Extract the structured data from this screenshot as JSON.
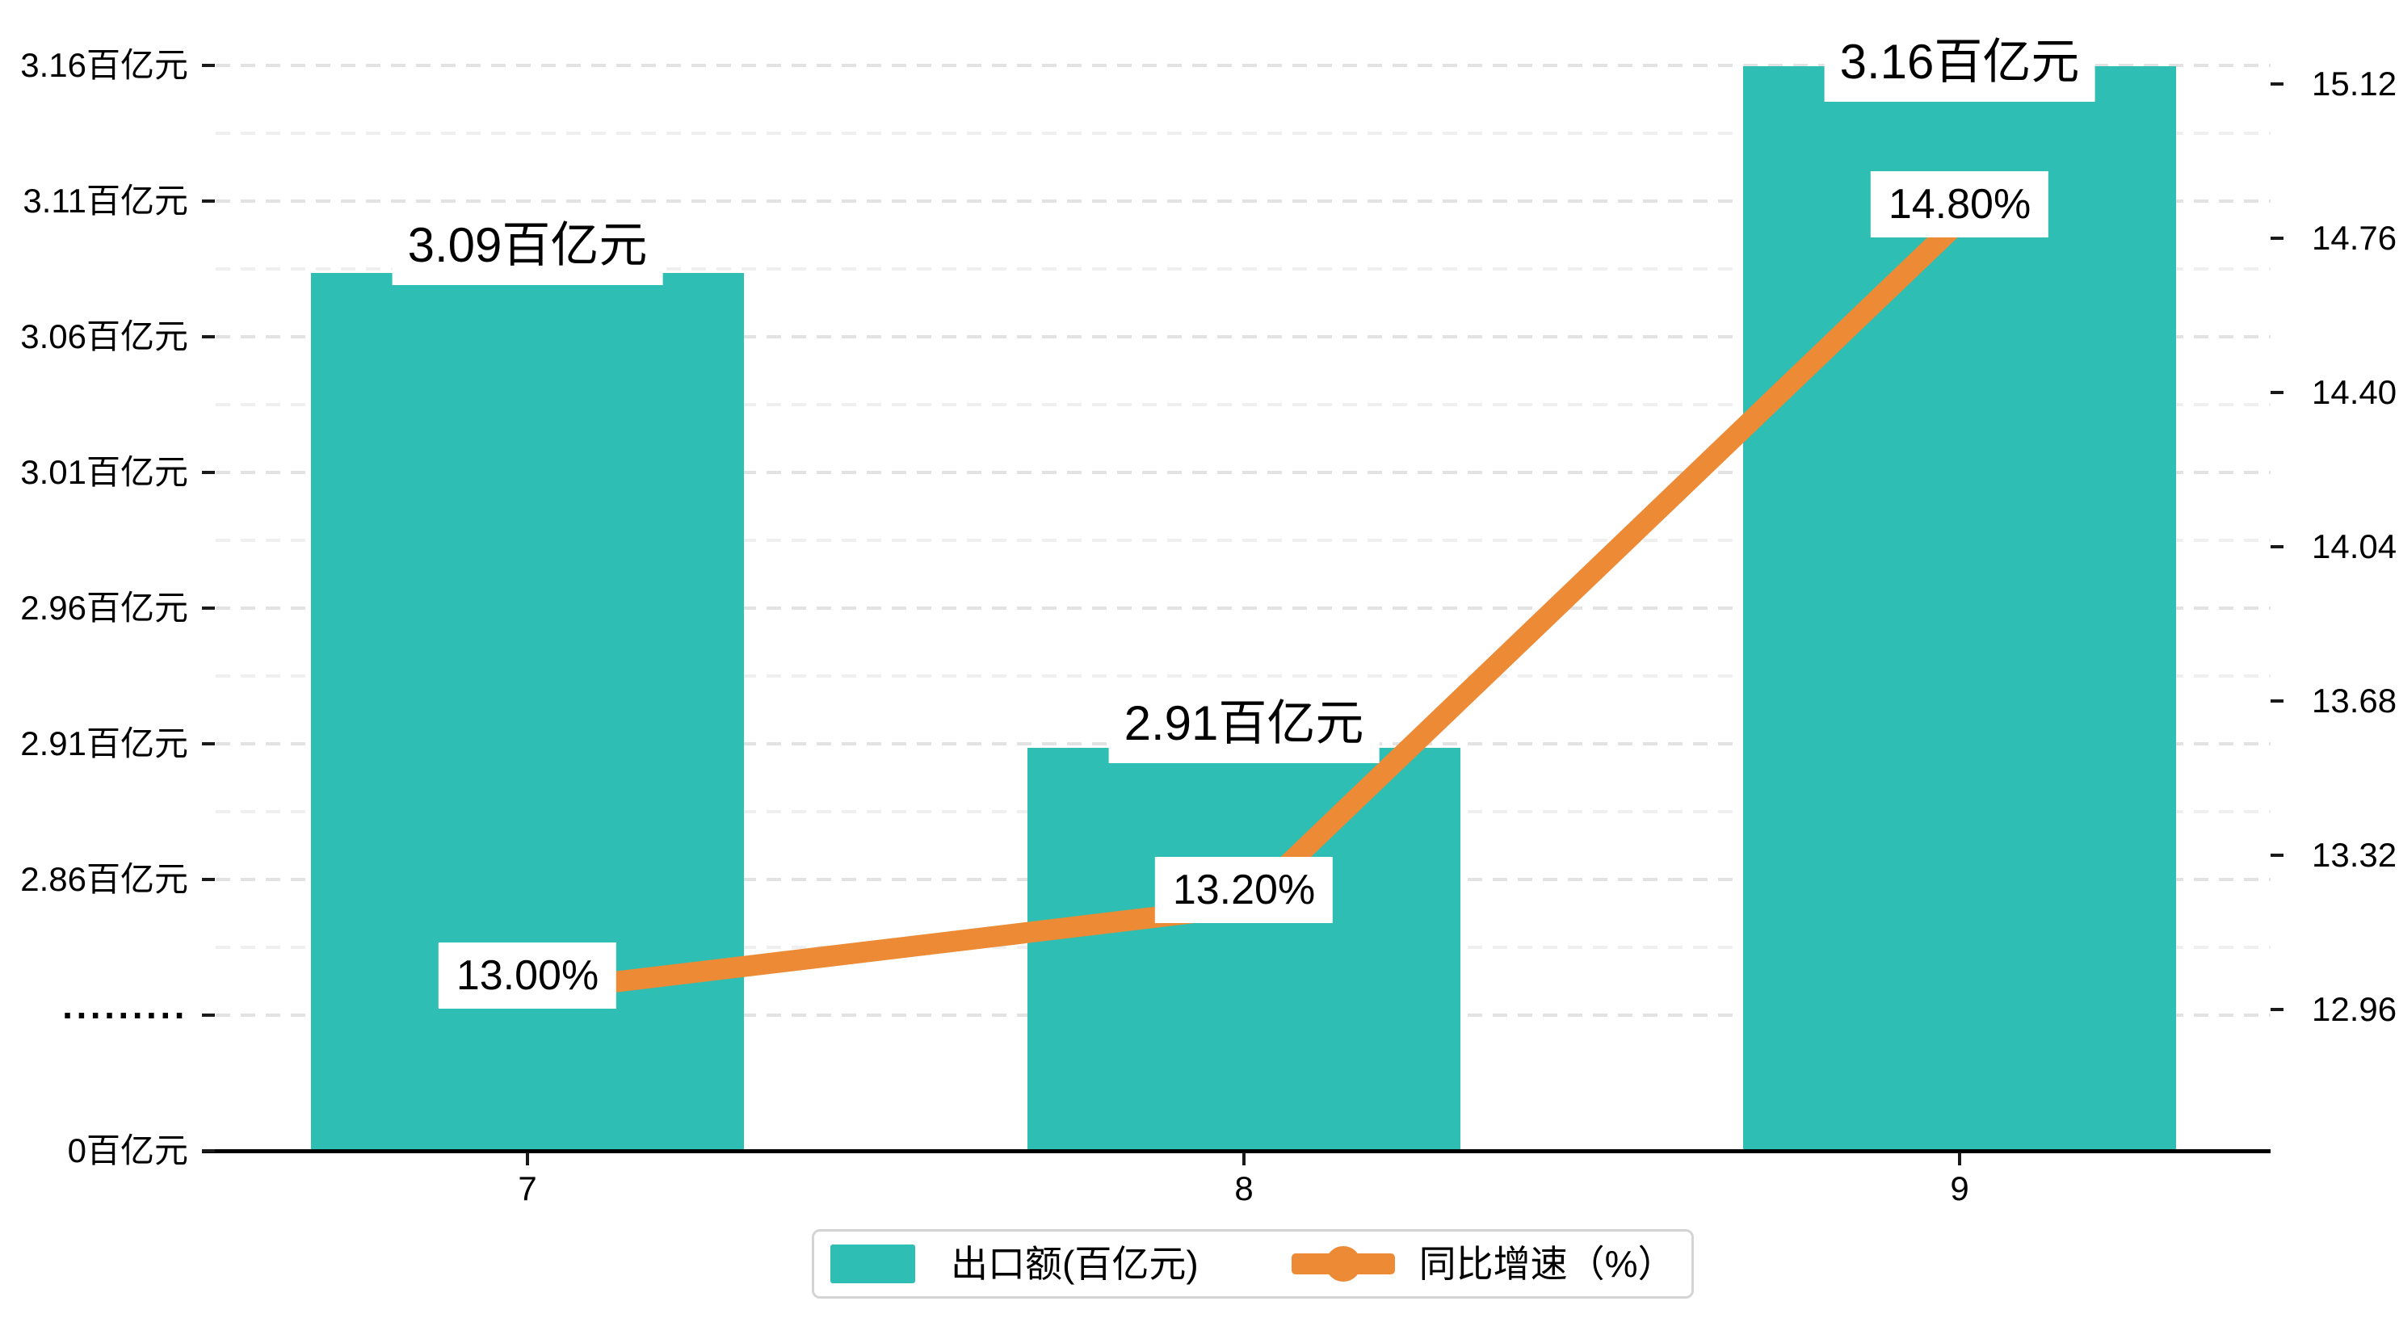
{
  "chart_data": {
    "type": "bar+line",
    "categories": [
      "7",
      "8",
      "9"
    ],
    "series": [
      {
        "name": "出口额(百亿元)",
        "type": "bar",
        "yaxis": "left",
        "unit": "百亿元",
        "values": [
          3.09,
          2.91,
          3.16
        ],
        "data_labels": [
          "3.09百亿元",
          "2.91百亿元",
          "3.16百亿元"
        ],
        "color": "#2FBEB3"
      },
      {
        "name": "同比增速（%）",
        "type": "line",
        "yaxis": "right",
        "unit": "%",
        "values": [
          13.0,
          13.2,
          14.8
        ],
        "data_labels": [
          "13.00%",
          "13.20%",
          "14.80%"
        ],
        "color": "#EC8A35"
      }
    ],
    "left_axis": {
      "tick_labels": [
        "0百亿元",
        "·········",
        "2.86百亿元",
        "2.91百亿元",
        "2.96百亿元",
        "3.01百亿元",
        "3.06百亿元",
        "3.11百亿元",
        "3.16百亿元"
      ],
      "tick_values": [
        0,
        null,
        2.86,
        2.91,
        2.96,
        3.01,
        3.06,
        3.11,
        3.16
      ],
      "axis_break": true,
      "break_marker": "·········",
      "visible_value_range": [
        2.86,
        3.16
      ],
      "tick_step": 0.05
    },
    "right_axis": {
      "tick_labels": [
        "12.96",
        "13.32",
        "13.68",
        "14.04",
        "14.40",
        "14.76",
        "15.12"
      ],
      "tick_values": [
        12.96,
        13.32,
        13.68,
        14.04,
        14.4,
        14.76,
        15.12
      ],
      "range": [
        12.96,
        15.12
      ],
      "tick_step": 0.36
    },
    "grid": {
      "major": true,
      "minor": true,
      "style": "dashed"
    },
    "legend_position": "bottom-center",
    "title": ""
  },
  "legend": {
    "items": [
      {
        "label": "出口额(百亿元)",
        "marker": "square",
        "color": "#2FBEB3"
      },
      {
        "label": "同比增速（%）",
        "marker": "line-circle",
        "color": "#EC8A35"
      }
    ]
  },
  "colors": {
    "background": "#FFFFFF",
    "bar": "#2FBEB3",
    "line": "#EC8A35",
    "grid_major": "#E2E2E2",
    "grid_minor": "#EFEFEF",
    "axis": "#000000",
    "text": "#000000",
    "label_box_bg": "#FFFFFF",
    "legend_border": "#D4D4D4"
  }
}
